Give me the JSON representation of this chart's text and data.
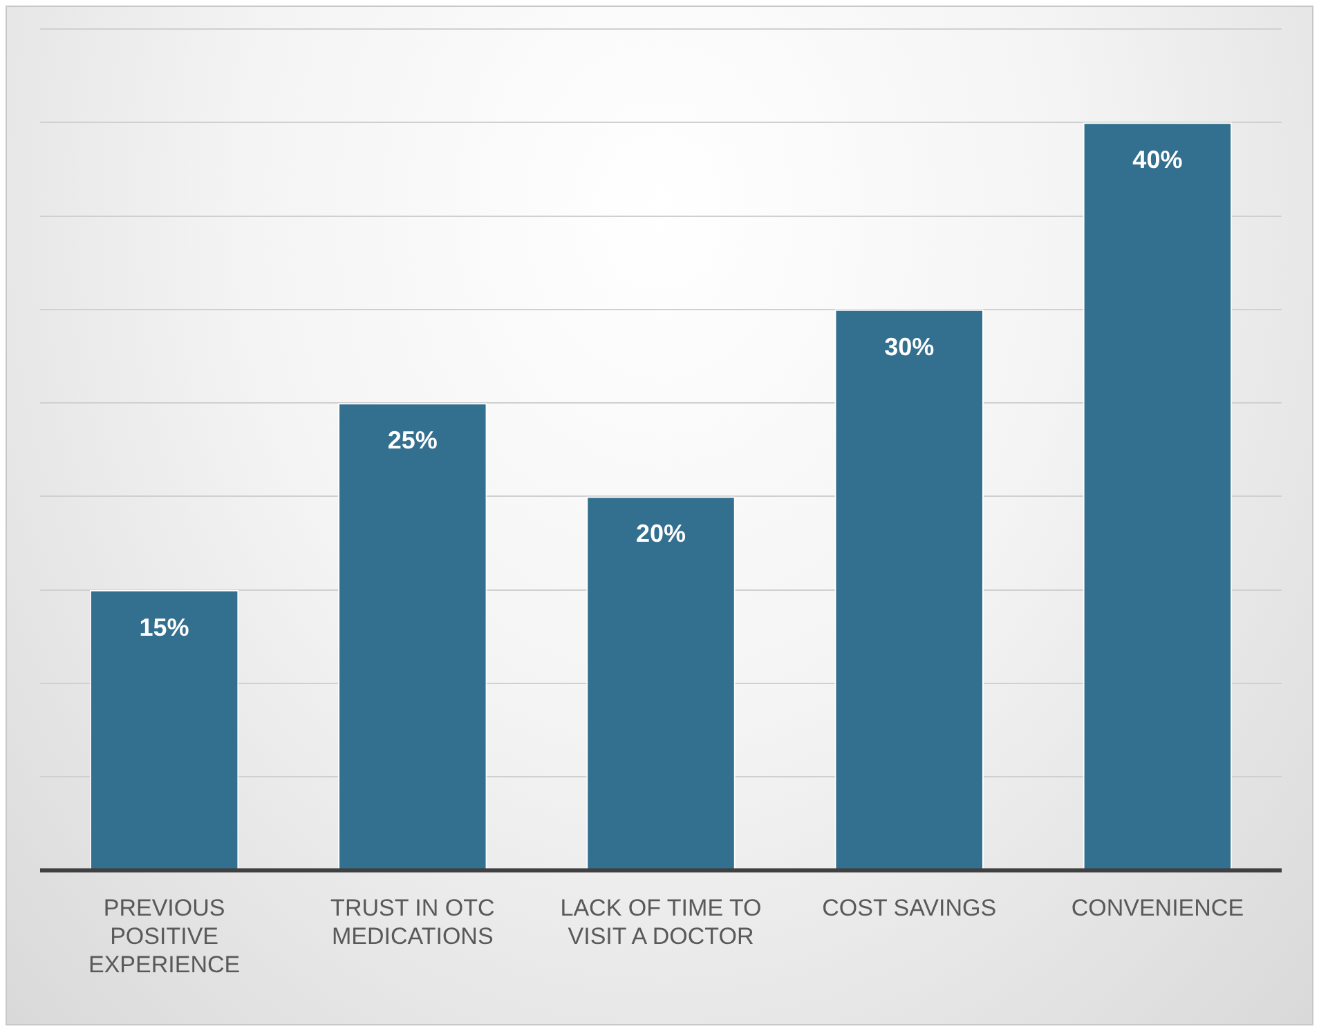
{
  "chart_data": {
    "type": "bar",
    "categories": [
      "PREVIOUS POSITIVE EXPERIENCE",
      "TRUST IN OTC MEDICATIONS",
      "LACK OF TIME TO VISIT A DOCTOR",
      "COST SAVINGS",
      "CONVENIENCE"
    ],
    "values": [
      15,
      25,
      20,
      30,
      40
    ],
    "color": "#336f8e",
    "value_labels": [
      "15%",
      "25%",
      "20%",
      "30%",
      "40%"
    ],
    "ylim": [
      0,
      45
    ],
    "yticks": [
      {
        "value": 0,
        "label": null
      },
      {
        "value": 5,
        "label": null
      },
      {
        "value": 10,
        "label": null
      },
      {
        "value": 15,
        "label": null
      },
      {
        "value": 20,
        "label": null
      },
      {
        "value": 25,
        "label": null
      },
      {
        "value": 30,
        "label": null
      },
      {
        "value": 35,
        "label": null
      },
      {
        "value": 40,
        "label": null
      },
      {
        "value": 45,
        "label": null
      }
    ],
    "grid": "y",
    "legend": false,
    "tick_labels": "x"
  }
}
